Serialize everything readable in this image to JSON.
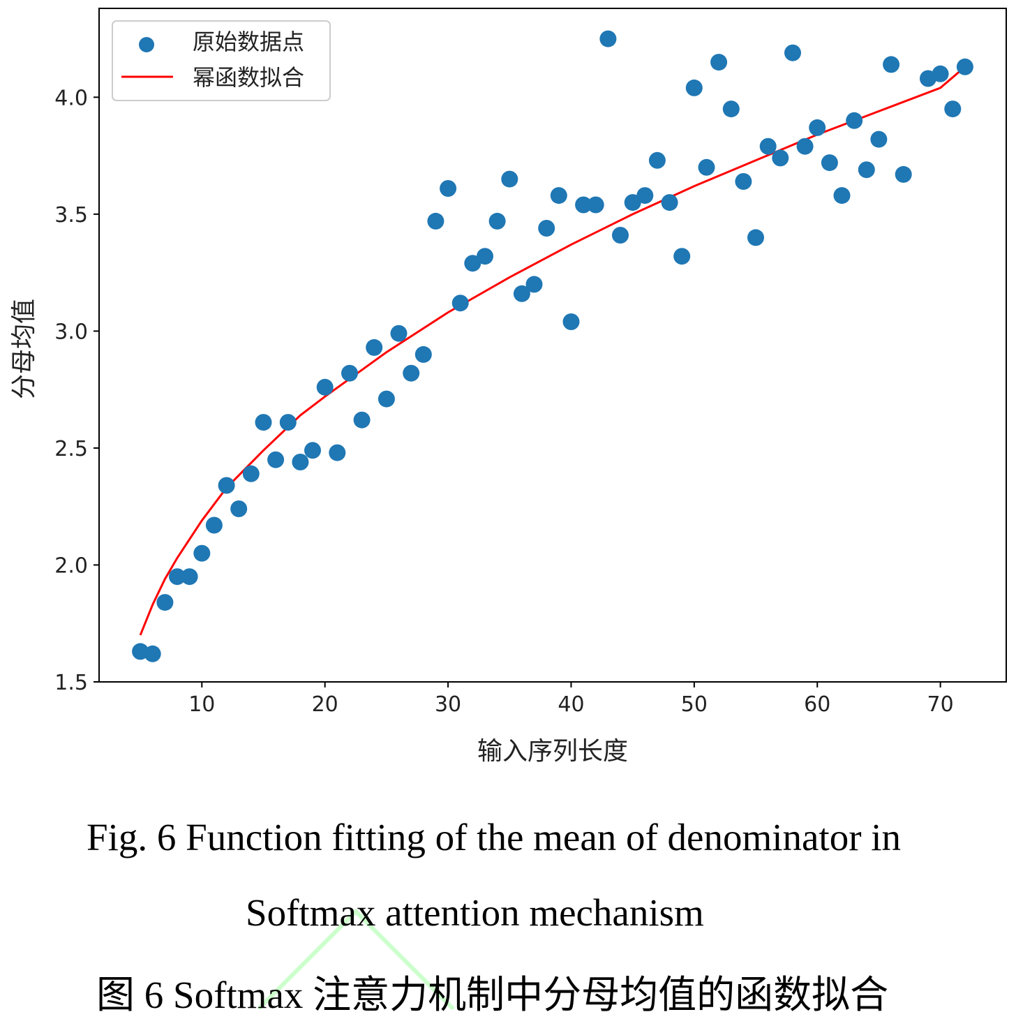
{
  "chart_data": {
    "type": "scatter",
    "xlabel": "输入序列长度",
    "ylabel": "分母均值",
    "xlim": [
      1.65,
      75.35
    ],
    "ylim": [
      1.5,
      4.38
    ],
    "xticks": [
      10,
      20,
      30,
      40,
      50,
      60,
      70
    ],
    "yticks": [
      1.5,
      2.0,
      2.5,
      3.0,
      3.5,
      4.0
    ],
    "ytick_labels": [
      "1.5",
      "2.0",
      "2.5",
      "3.0",
      "3.5",
      "4.0"
    ],
    "legend": {
      "position": "upper-left",
      "entries": [
        "原始数据点",
        "幂函数拟合"
      ]
    },
    "grid": false,
    "series": [
      {
        "name": "原始数据点",
        "kind": "scatter",
        "color": "#1f77b4",
        "x": [
          5,
          6,
          7,
          8,
          9,
          10,
          11,
          12,
          13,
          14,
          15,
          16,
          17,
          18,
          19,
          20,
          21,
          22,
          23,
          24,
          25,
          26,
          27,
          28,
          29,
          30,
          31,
          32,
          33,
          34,
          35,
          36,
          37,
          38,
          39,
          40,
          41,
          42,
          43,
          44,
          45,
          46,
          47,
          48,
          49,
          50,
          51,
          52,
          53,
          54,
          55,
          56,
          57,
          58,
          59,
          60,
          61,
          62,
          63,
          64,
          65,
          66,
          67,
          69,
          70,
          71,
          72
        ],
        "y": [
          1.63,
          1.62,
          1.84,
          1.95,
          1.95,
          2.05,
          2.17,
          2.34,
          2.24,
          2.39,
          2.61,
          2.45,
          2.61,
          2.44,
          2.49,
          2.76,
          2.48,
          2.82,
          2.62,
          2.93,
          2.71,
          2.99,
          2.82,
          2.9,
          3.47,
          3.61,
          3.12,
          3.29,
          3.32,
          3.47,
          3.65,
          3.16,
          3.2,
          3.44,
          3.58,
          3.04,
          3.54,
          3.54,
          4.25,
          3.41,
          3.55,
          3.58,
          3.73,
          3.55,
          3.32,
          4.04,
          3.7,
          4.15,
          3.95,
          3.64,
          3.4,
          3.79,
          3.74,
          4.19,
          3.79,
          3.87,
          3.72,
          3.58,
          3.9,
          3.69,
          3.82,
          4.14,
          3.67,
          4.08,
          4.1,
          3.95,
          4.13
        ]
      },
      {
        "name": "幂函数拟合",
        "kind": "line",
        "color": "#ff0000",
        "x": [
          5,
          6,
          7,
          8,
          10,
          12,
          15,
          18,
          20,
          25,
          30,
          35,
          40,
          45,
          50,
          55,
          60,
          65,
          70,
          72
        ],
        "y": [
          1.7,
          1.83,
          1.94,
          2.03,
          2.19,
          2.33,
          2.49,
          2.64,
          2.72,
          2.91,
          3.08,
          3.23,
          3.37,
          3.5,
          3.62,
          3.73,
          3.84,
          3.94,
          4.04,
          4.13
        ]
      }
    ]
  },
  "caption": {
    "line1": "Fig. 6 Function fitting of the mean of denominator in",
    "line2": "Softmax attention mechanism",
    "line3": "图  6 Softmax 注意力机制中分母均值的函数拟合"
  }
}
